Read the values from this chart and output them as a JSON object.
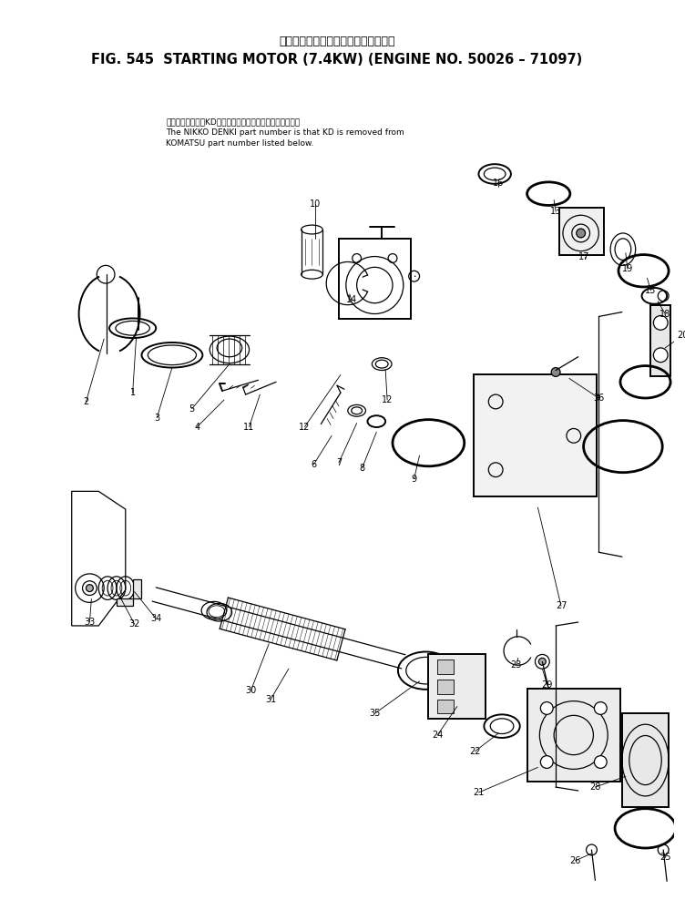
{
  "title_japanese": "スターティングモータ　　　適用号機",
  "title_english": "FIG. 545  STARTING MOTOR (7.4KW) (ENGINE NO. 50026 – 71097)",
  "note_line1": "品番のメーカ記号KDを除いたものが日興電機の品番です。",
  "note_line2": "The NIKKO DENKI part number is that KD is removed from",
  "note_line3": "KOMATSU part number listed below.",
  "bg_color": "#ffffff",
  "figsize": [
    7.52,
    9.99
  ],
  "dpi": 100
}
